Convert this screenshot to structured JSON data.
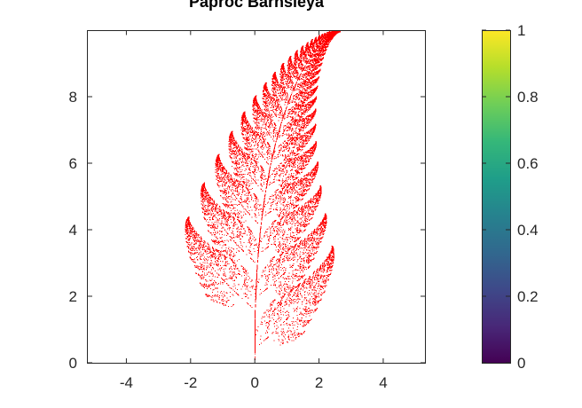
{
  "chart_data": [
    {
      "type": "scatter",
      "title": "Paproc Barnsleya",
      "xlabel": "",
      "ylabel": "",
      "xlim": [
        -5.2,
        5.3
      ],
      "ylim": [
        0,
        10
      ],
      "xticks": [
        "-4",
        "-2",
        "0",
        "2",
        "4"
      ],
      "xtick_values": [
        -4,
        -2,
        0,
        2,
        4
      ],
      "yticks": [
        "0",
        "2",
        "4",
        "6",
        "8"
      ],
      "ytick_values": [
        0,
        2,
        4,
        6,
        8
      ],
      "grid": false,
      "series": [
        {
          "color": "#ff0000",
          "marker": "dot",
          "ifs": {
            "point_count": 60000,
            "maps": [
              {
                "a": 0.0,
                "b": 0.0,
                "c": 0.0,
                "d": 0.16,
                "e": 0.0,
                "f": 0.0,
                "p": 0.01
              },
              {
                "a": 0.85,
                "b": 0.04,
                "c": -0.04,
                "d": 0.85,
                "e": 0.0,
                "f": 1.6,
                "p": 0.85
              },
              {
                "a": 0.2,
                "b": -0.26,
                "c": 0.23,
                "d": 0.22,
                "e": 0.0,
                "f": 1.6,
                "p": 0.07
              },
              {
                "a": -0.15,
                "b": 0.28,
                "c": 0.26,
                "d": 0.24,
                "e": 0.0,
                "f": 0.44,
                "p": 0.07
              }
            ]
          }
        }
      ]
    },
    {
      "type": "colorbar",
      "colormap": "viridis",
      "colors": [
        "#440154",
        "#482878",
        "#3e4989",
        "#31688e",
        "#26828e",
        "#1f9e89",
        "#35b779",
        "#6ece58",
        "#b5de2b",
        "#fde725"
      ],
      "ylim": [
        0,
        1
      ],
      "ticks": [
        "0",
        "0.2",
        "0.4",
        "0.6",
        "0.8",
        "1"
      ],
      "tick_values": [
        0,
        0.2,
        0.4,
        0.6,
        0.8,
        1
      ]
    }
  ]
}
